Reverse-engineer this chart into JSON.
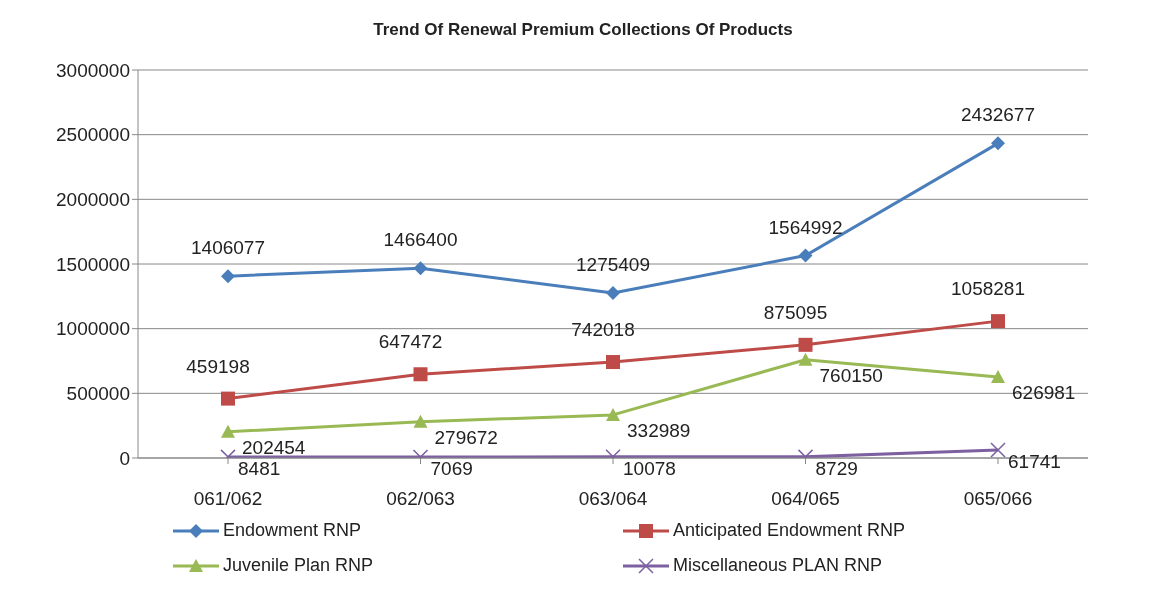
{
  "chart_data": {
    "type": "line",
    "title": "Trend Of Renewal Premium Collections Of Products",
    "categories": [
      "061/062",
      "062/063",
      "063/064",
      "064/065",
      "065/066"
    ],
    "series": [
      {
        "name": "Endowment RNP",
        "color": "#4a7ebb",
        "marker": "diamond",
        "values": [
          1406077,
          1466400,
          1275409,
          1564992,
          2432677
        ]
      },
      {
        "name": "Anticipated Endowment  RNP",
        "color": "#be4b48",
        "marker": "square",
        "values": [
          459198,
          647472,
          742018,
          875095,
          1058281
        ]
      },
      {
        "name": "Juvenile  Plan RNP",
        "color": "#98b954",
        "marker": "triangle",
        "values": [
          202454,
          279672,
          332989,
          760150,
          626981
        ]
      },
      {
        "name": "Miscellaneous PLAN RNP",
        "color": "#7d60a0",
        "marker": "cross",
        "values": [
          8481,
          7069,
          10078,
          8729,
          61741
        ]
      }
    ],
    "ylim": [
      0,
      3000000
    ],
    "yticks": [
      0,
      500000,
      1000000,
      1500000,
      2000000,
      2500000,
      3000000
    ],
    "grid": "y",
    "legend": "bottom",
    "data_labels": true
  }
}
